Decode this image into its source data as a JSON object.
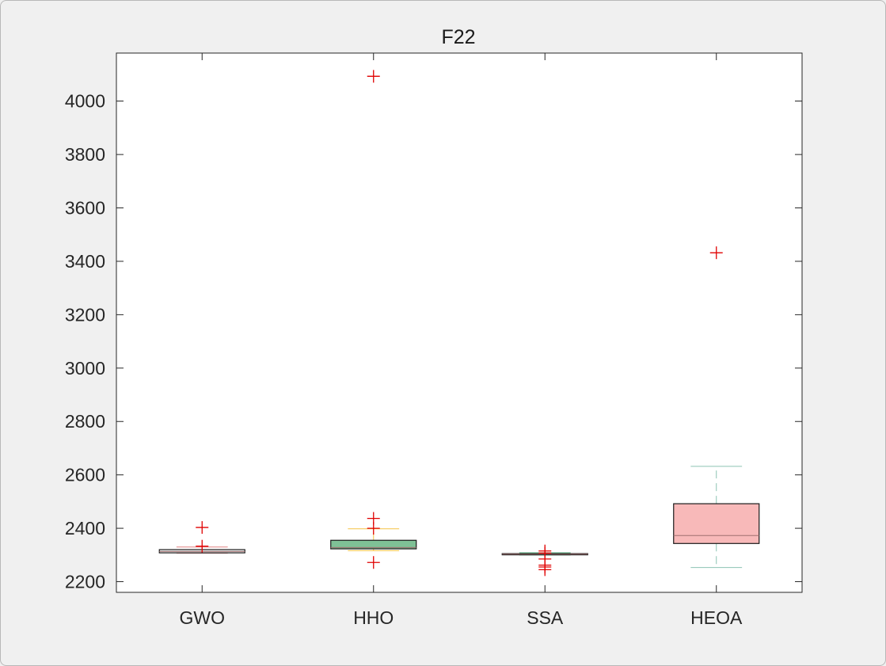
{
  "chart_data": {
    "type": "box",
    "title": "F22",
    "xlabel": "",
    "ylabel": "",
    "categories": [
      "GWO",
      "HHO",
      "SSA",
      "HEOA"
    ],
    "ylim": [
      2160,
      4180
    ],
    "yticks": [
      2200,
      2400,
      2600,
      2800,
      3000,
      3200,
      3400,
      3600,
      3800,
      4000
    ],
    "grid": false,
    "boxes": [
      {
        "name": "GWO",
        "q1": 2308,
        "median": 2313,
        "q3": 2320,
        "whisker_low": 2307,
        "whisker_high": 2330,
        "outliers": [
          2403,
          2333
        ],
        "fill": "#f2f2f2",
        "whisker_color": "#e08080"
      },
      {
        "name": "HHO",
        "q1": 2323,
        "median": 2328,
        "q3": 2355,
        "whisker_low": 2316,
        "whisker_high": 2398,
        "outliers": [
          4093,
          2437,
          2400,
          2272
        ],
        "fill": "#7fc196",
        "whisker_color": "#f5c242"
      },
      {
        "name": "SSA",
        "q1": 2301,
        "median": 2303,
        "q3": 2305,
        "whisker_low": 2300,
        "whisker_high": 2308,
        "outliers": [
          2315,
          2307,
          2285,
          2262,
          2255,
          2245
        ],
        "fill": "#7fc196",
        "whisker_color": "#3aa06a"
      },
      {
        "name": "HEOA",
        "q1": 2343,
        "median": 2373,
        "q3": 2492,
        "whisker_low": 2253,
        "whisker_high": 2632,
        "outliers": [
          3432
        ],
        "fill": "#f8b9b9",
        "whisker_color": "#8cc3b2"
      }
    ]
  }
}
